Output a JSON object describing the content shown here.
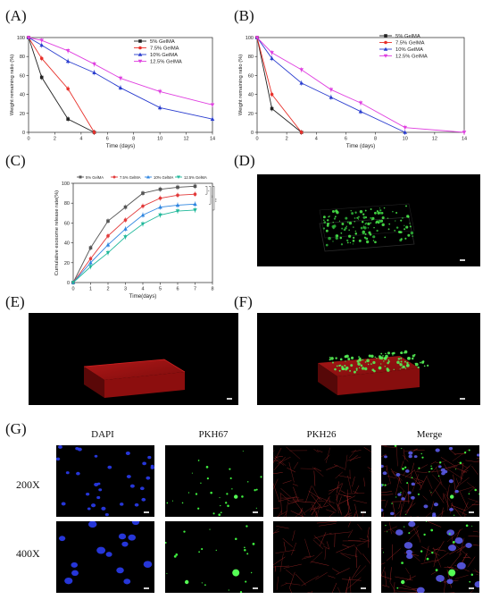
{
  "labels": {
    "a": "(A)",
    "b": "(B)",
    "c": "(C)",
    "d": "(D)",
    "e": "(E)",
    "f": "(F)",
    "g": "(G)"
  },
  "panel_g": {
    "columns": [
      "DAPI",
      "PKH67",
      "PKH26",
      "Merge"
    ],
    "rows": [
      "200X",
      "400X"
    ]
  },
  "colors": {
    "black": "#222222",
    "red": "#e8302a",
    "blue": "#2a3dcf",
    "magenta": "#e040e0",
    "c_black": "#555555",
    "c_red": "#e23a3a",
    "c_blue": "#2f86e0",
    "c_green": "#1fb89a"
  },
  "chart_data": [
    {
      "type": "line",
      "panel": "A",
      "xlabel": "Time (days)",
      "ylabel": "Weight remaining ratio (%)",
      "xlim": [
        0,
        14
      ],
      "ylim": [
        0,
        100
      ],
      "xticks": [
        0,
        2,
        4,
        6,
        8,
        10,
        12,
        14
      ],
      "yticks": [
        0,
        20,
        40,
        60,
        80,
        100
      ],
      "legend_position": "top-right",
      "series": [
        {
          "name": "5% GelMA",
          "color": "#222222",
          "marker": "square",
          "x": [
            0,
            1,
            3,
            5
          ],
          "y": [
            100,
            58,
            14,
            0
          ]
        },
        {
          "name": "7.5% GelMA",
          "color": "#e8302a",
          "marker": "circle",
          "x": [
            0,
            1,
            3,
            5
          ],
          "y": [
            100,
            78,
            46,
            0
          ]
        },
        {
          "name": "10% GelMA",
          "color": "#2a3dcf",
          "marker": "triangle",
          "x": [
            0,
            1,
            3,
            5,
            7,
            10,
            14
          ],
          "y": [
            100,
            92,
            75,
            63,
            47,
            26,
            14
          ]
        },
        {
          "name": "12.5% GelMA",
          "color": "#e040e0",
          "marker": "triangle-down",
          "x": [
            0,
            1,
            3,
            5,
            7,
            10,
            14
          ],
          "y": [
            100,
            97,
            86,
            72,
            57,
            43,
            29
          ]
        }
      ]
    },
    {
      "type": "line",
      "panel": "B",
      "xlabel": "Time (days)",
      "ylabel": "Weight remaining ratio (%)",
      "xlim": [
        0,
        14
      ],
      "ylim": [
        0,
        100
      ],
      "xticks": [
        0,
        2,
        4,
        6,
        8,
        10,
        12,
        14
      ],
      "yticks": [
        0,
        20,
        40,
        60,
        80,
        100
      ],
      "legend_position": "top-right",
      "series": [
        {
          "name": "5% GelMA",
          "color": "#222222",
          "marker": "square",
          "x": [
            0,
            1,
            3
          ],
          "y": [
            100,
            25,
            0
          ]
        },
        {
          "name": "7.5% GelMA",
          "color": "#e8302a",
          "marker": "circle",
          "x": [
            0,
            1,
            3
          ],
          "y": [
            100,
            40,
            0
          ]
        },
        {
          "name": "10% GelMA",
          "color": "#2a3dcf",
          "marker": "triangle",
          "x": [
            0,
            1,
            3,
            5,
            7,
            10
          ],
          "y": [
            100,
            78,
            52,
            37,
            22,
            0
          ]
        },
        {
          "name": "12.5% GelMA",
          "color": "#e040e0",
          "marker": "triangle-down",
          "x": [
            0,
            1,
            3,
            5,
            7,
            10,
            14
          ],
          "y": [
            100,
            84,
            66,
            45,
            31,
            5,
            0
          ]
        }
      ]
    },
    {
      "type": "line",
      "panel": "C",
      "xlabel": "Time(days)",
      "ylabel": "Cumulative exosome release rate(%)",
      "xlim": [
        0,
        8
      ],
      "ylim": [
        0,
        100
      ],
      "xticks": [
        0,
        1,
        2,
        3,
        4,
        5,
        6,
        7,
        8
      ],
      "yticks": [
        0,
        20,
        40,
        60,
        80,
        100
      ],
      "legend_position": "top",
      "significance": [
        "*",
        "**",
        "***"
      ],
      "series": [
        {
          "name": "5% GelMA",
          "color": "#555555",
          "marker": "square",
          "x": [
            0,
            1,
            2,
            3,
            4,
            5,
            6,
            7
          ],
          "y": [
            0,
            35,
            62,
            76,
            90,
            94,
            96,
            97
          ]
        },
        {
          "name": "7.5% GelMA",
          "color": "#e23a3a",
          "marker": "circle",
          "x": [
            0,
            1,
            2,
            3,
            4,
            5,
            6,
            7
          ],
          "y": [
            0,
            24,
            47,
            63,
            77,
            85,
            88,
            89
          ]
        },
        {
          "name": "10% GelMA",
          "color": "#2f86e0",
          "marker": "triangle",
          "x": [
            0,
            1,
            2,
            3,
            4,
            5,
            6,
            7
          ],
          "y": [
            0,
            20,
            38,
            54,
            68,
            76,
            78,
            79
          ]
        },
        {
          "name": "12.5% GelMA",
          "color": "#1fb89a",
          "marker": "triangle-down",
          "x": [
            0,
            1,
            2,
            3,
            4,
            5,
            6,
            7
          ],
          "y": [
            0,
            16,
            30,
            46,
            59,
            68,
            72,
            73
          ]
        }
      ]
    }
  ]
}
